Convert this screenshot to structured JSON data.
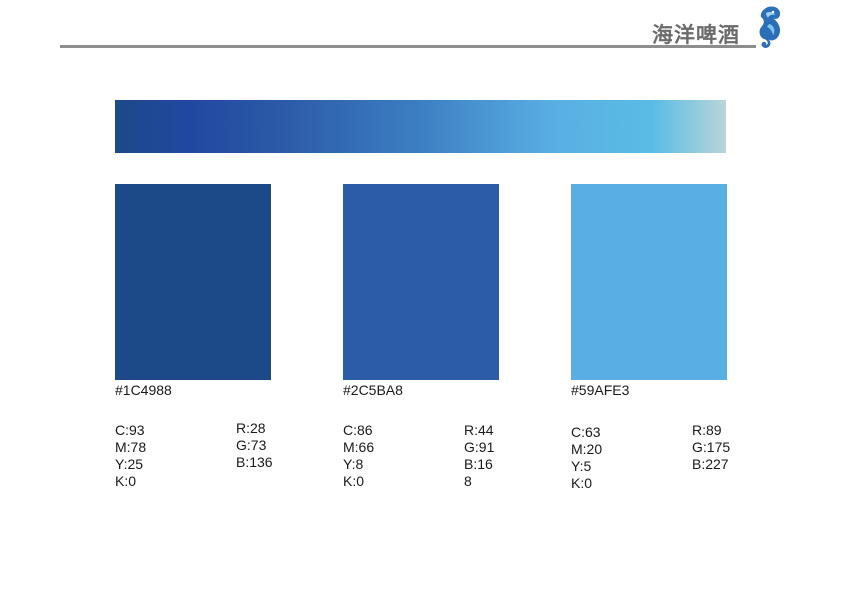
{
  "header": {
    "brand": "海洋啤酒"
  },
  "gradient": {
    "stops": [
      "#1C4988",
      "#2148A0",
      "#2C5BA8",
      "#3D7FC3",
      "#59AFE3",
      "#5ABCE5",
      "#B9D5DA"
    ]
  },
  "swatches": [
    {
      "hex": "#1C4988",
      "color": "#1C4988",
      "cmyk": [
        "C:93",
        "M:78",
        "Y:25",
        "K:0"
      ],
      "rgb": [
        "R:28",
        "G:73",
        "B:136"
      ]
    },
    {
      "hex": "#2C5BA8",
      "color": "#2C5BA8",
      "cmyk": [
        "C:86",
        "M:66",
        "Y:8",
        "K:0"
      ],
      "rgb": [
        "R:44",
        "G:91",
        "B:16",
        "8"
      ]
    },
    {
      "hex": "#59AFE3",
      "color": "#59AFE3",
      "cmyk": [
        "C:63",
        "M:20",
        "Y:5",
        "K:0"
      ],
      "rgb": [
        "R:89",
        "G:175",
        "B:227"
      ]
    }
  ]
}
